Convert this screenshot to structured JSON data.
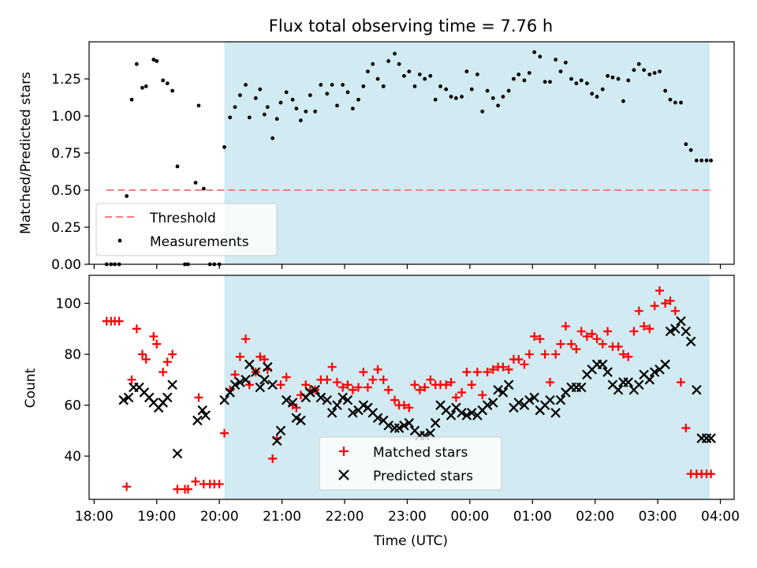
{
  "figure": {
    "title": "Flux total observing time = 7.76 h"
  },
  "colors": {
    "shade": "#add8e6",
    "threshold": "#f08080",
    "matched": "#ff0000",
    "predicted": "#000000",
    "measurement": "#000000"
  },
  "chart_data": [
    {
      "type": "scatter",
      "panel": "top",
      "ylabel": "Matched/Predicted stars",
      "xlim": [
        17.92,
        28.22
      ],
      "ylim": [
        0.0,
        1.5
      ],
      "yticks": [
        0.0,
        0.25,
        0.5,
        0.75,
        1.0,
        1.25
      ],
      "ytick_labels": [
        "0.00",
        "0.25",
        "0.50",
        "0.75",
        "1.00",
        "1.25"
      ],
      "grid": false,
      "legend_position": "lower left",
      "shaded_interval": [
        20.08,
        27.83
      ],
      "threshold": {
        "name": "Threshold",
        "y": 0.5,
        "x_range": [
          18.2,
          27.83
        ]
      },
      "series": [
        {
          "name": "Measurements",
          "marker": "dot",
          "x": [
            18.2,
            18.27,
            18.33,
            18.4,
            18.52,
            18.6,
            18.68,
            18.77,
            18.83,
            18.95,
            19.0,
            19.1,
            19.17,
            19.25,
            19.33,
            19.45,
            19.5,
            19.62,
            19.67,
            19.75,
            19.85,
            19.92,
            20.0,
            20.08,
            20.17,
            20.25,
            20.33,
            20.42,
            20.48,
            20.58,
            20.65,
            20.72,
            20.77,
            20.85,
            20.92,
            20.98,
            21.07,
            21.17,
            21.23,
            21.3,
            21.38,
            21.45,
            21.53,
            21.62,
            21.72,
            21.8,
            21.88,
            21.97,
            22.05,
            22.13,
            22.22,
            22.3,
            22.37,
            22.45,
            22.53,
            22.62,
            22.7,
            22.8,
            22.87,
            22.95,
            23.03,
            23.12,
            23.2,
            23.28,
            23.37,
            23.45,
            23.53,
            23.62,
            23.7,
            23.78,
            23.87,
            23.95,
            24.03,
            24.12,
            24.2,
            24.28,
            24.37,
            24.45,
            24.53,
            24.62,
            24.7,
            24.78,
            24.87,
            24.95,
            25.03,
            25.12,
            25.2,
            25.28,
            25.37,
            25.45,
            25.53,
            25.62,
            25.7,
            25.78,
            25.87,
            25.95,
            26.03,
            26.12,
            26.2,
            26.28,
            26.37,
            26.45,
            26.53,
            26.62,
            26.7,
            26.78,
            26.87,
            26.95,
            27.03,
            27.12,
            27.2,
            27.28,
            27.37,
            27.45,
            27.53,
            27.62,
            27.7,
            27.78,
            27.85
          ],
          "y": [
            0.0,
            0.0,
            0.0,
            0.0,
            0.46,
            1.11,
            1.35,
            1.19,
            1.2,
            1.38,
            1.37,
            1.24,
            1.22,
            1.17,
            0.66,
            0.0,
            0.0,
            0.55,
            1.07,
            0.51,
            0.0,
            0.0,
            0.0,
            0.79,
            0.99,
            1.06,
            1.14,
            1.21,
            0.99,
            1.12,
            1.18,
            1.01,
            1.06,
            0.85,
            0.98,
            1.09,
            1.16,
            1.11,
            1.05,
            0.97,
            1.03,
            1.14,
            1.03,
            1.21,
            1.15,
            1.21,
            1.07,
            1.21,
            1.16,
            1.05,
            1.11,
            1.2,
            1.3,
            1.35,
            1.25,
            1.2,
            1.37,
            1.42,
            1.35,
            1.27,
            1.3,
            1.2,
            1.28,
            1.25,
            1.27,
            1.11,
            1.2,
            1.18,
            1.13,
            1.12,
            1.13,
            1.3,
            1.18,
            1.28,
            1.03,
            1.17,
            1.12,
            1.07,
            1.13,
            1.17,
            1.25,
            1.28,
            1.24,
            1.29,
            1.43,
            1.4,
            1.23,
            1.23,
            1.38,
            1.3,
            1.36,
            1.25,
            1.22,
            1.24,
            1.22,
            1.15,
            1.13,
            1.18,
            1.27,
            1.26,
            1.25,
            1.1,
            1.24,
            1.31,
            1.35,
            1.31,
            1.28,
            1.29,
            1.3,
            1.17,
            1.11,
            1.09,
            1.09,
            0.81,
            0.77,
            0.7,
            0.7,
            0.7,
            0.7
          ]
        }
      ]
    },
    {
      "type": "scatter",
      "panel": "bottom",
      "xlabel": "Time (UTC)",
      "ylabel": "Count",
      "xlim": [
        17.92,
        28.22
      ],
      "ylim": [
        23,
        111
      ],
      "xticks": [
        18,
        19,
        20,
        21,
        22,
        23,
        24,
        25,
        26,
        27,
        28
      ],
      "xtick_labels": [
        "18:00",
        "19:00",
        "20:00",
        "21:00",
        "22:00",
        "23:00",
        "00:00",
        "01:00",
        "02:00",
        "03:00",
        "04:00"
      ],
      "yticks": [
        40,
        60,
        80,
        100
      ],
      "ytick_labels": [
        "40",
        "60",
        "80",
        "100"
      ],
      "grid": false,
      "legend_position": "lower center",
      "shaded_interval": [
        20.08,
        27.83
      ],
      "series": [
        {
          "name": "Matched stars",
          "marker": "plus",
          "x": [
            18.2,
            18.27,
            18.33,
            18.4,
            18.52,
            18.6,
            18.68,
            18.77,
            18.83,
            18.95,
            19.0,
            19.1,
            19.17,
            19.25,
            19.33,
            19.45,
            19.5,
            19.62,
            19.67,
            19.75,
            19.85,
            19.92,
            20.0,
            20.08,
            20.17,
            20.25,
            20.33,
            20.42,
            20.48,
            20.58,
            20.65,
            20.72,
            20.77,
            20.85,
            20.92,
            20.98,
            21.07,
            21.17,
            21.23,
            21.3,
            21.38,
            21.45,
            21.53,
            21.62,
            21.72,
            21.8,
            21.88,
            21.97,
            22.05,
            22.13,
            22.22,
            22.3,
            22.37,
            22.45,
            22.53,
            22.62,
            22.7,
            22.8,
            22.87,
            22.95,
            23.03,
            23.12,
            23.2,
            23.28,
            23.37,
            23.45,
            23.53,
            23.62,
            23.7,
            23.78,
            23.87,
            23.95,
            24.03,
            24.12,
            24.2,
            24.28,
            24.37,
            24.45,
            24.53,
            24.62,
            24.7,
            24.78,
            24.87,
            24.95,
            25.03,
            25.12,
            25.2,
            25.28,
            25.37,
            25.45,
            25.53,
            25.62,
            25.7,
            25.78,
            25.87,
            25.95,
            26.03,
            26.12,
            26.2,
            26.28,
            26.37,
            26.45,
            26.53,
            26.62,
            26.7,
            26.78,
            26.87,
            26.95,
            27.03,
            27.12,
            27.2,
            27.28,
            27.37,
            27.45,
            27.53,
            27.62,
            27.7,
            27.78,
            27.85
          ],
          "y": [
            93,
            93,
            93,
            93,
            28,
            70,
            90,
            80,
            78,
            87,
            84,
            73,
            77,
            80,
            27,
            27,
            27,
            30,
            63,
            29,
            29,
            29,
            29,
            49,
            66,
            72,
            79,
            86,
            68,
            73,
            79,
            78,
            74,
            39,
            47,
            68,
            71,
            60,
            59,
            64,
            68,
            66,
            66,
            70,
            70,
            75,
            69,
            67,
            68,
            66,
            67,
            73,
            67,
            70,
            74,
            70,
            66,
            62,
            60,
            60,
            59,
            68,
            66,
            67,
            70,
            68,
            68,
            68,
            69,
            63,
            65,
            73,
            68,
            73,
            64,
            73,
            74,
            75,
            75,
            74,
            78,
            78,
            76,
            80,
            87,
            86,
            80,
            69,
            80,
            84,
            91,
            84,
            82,
            89,
            87,
            88,
            86,
            84,
            89,
            83,
            83,
            80,
            79,
            89,
            97,
            91,
            90,
            99,
            105,
            100,
            101,
            97,
            69,
            51,
            33,
            33,
            33,
            33,
            33
          ]
        },
        {
          "name": "Predicted stars",
          "marker": "x",
          "x": [
            18.47,
            18.55,
            18.63,
            18.72,
            18.8,
            18.88,
            18.95,
            19.03,
            19.1,
            19.17,
            19.25,
            19.33,
            19.65,
            19.73,
            19.78,
            20.08,
            20.17,
            20.25,
            20.33,
            20.42,
            20.48,
            20.58,
            20.65,
            20.72,
            20.77,
            20.85,
            20.92,
            20.98,
            21.07,
            21.17,
            21.23,
            21.3,
            21.38,
            21.45,
            21.53,
            21.62,
            21.72,
            21.8,
            21.88,
            21.97,
            22.05,
            22.13,
            22.22,
            22.3,
            22.37,
            22.45,
            22.53,
            22.62,
            22.7,
            22.8,
            22.87,
            22.95,
            23.03,
            23.12,
            23.2,
            23.28,
            23.37,
            23.45,
            23.53,
            23.62,
            23.7,
            23.78,
            23.87,
            23.95,
            24.03,
            24.12,
            24.2,
            24.28,
            24.37,
            24.45,
            24.53,
            24.62,
            24.7,
            24.78,
            24.87,
            24.95,
            25.03,
            25.12,
            25.2,
            25.28,
            25.37,
            25.45,
            25.53,
            25.62,
            25.7,
            25.78,
            25.87,
            25.95,
            26.03,
            26.12,
            26.2,
            26.28,
            26.37,
            26.45,
            26.53,
            26.62,
            26.7,
            26.78,
            26.87,
            26.95,
            27.03,
            27.12,
            27.2,
            27.28,
            27.37,
            27.45,
            27.53,
            27.62,
            27.7,
            27.78,
            27.85
          ],
          "y": [
            62,
            63,
            67,
            67,
            65,
            63,
            61,
            59,
            61,
            63,
            68,
            41,
            54,
            58,
            56,
            62,
            65,
            68,
            69,
            70,
            76,
            73,
            67,
            70,
            75,
            68,
            46,
            50,
            62,
            61,
            55,
            54,
            63,
            65,
            66,
            63,
            62,
            57,
            60,
            63,
            62,
            57,
            58,
            60,
            59,
            57,
            55,
            54,
            52,
            51,
            51,
            52,
            53,
            50,
            48,
            48,
            49,
            53,
            60,
            58,
            56,
            59,
            57,
            56,
            57,
            56,
            58,
            60,
            61,
            66,
            65,
            68,
            59,
            61,
            60,
            62,
            63,
            58,
            60,
            62,
            57,
            62,
            65,
            67,
            67,
            67,
            72,
            74,
            76,
            76,
            73,
            68,
            66,
            69,
            69,
            66,
            68,
            72,
            70,
            73,
            74,
            76,
            89,
            90,
            93,
            89,
            85,
            66,
            47,
            47,
            47
          ]
        }
      ]
    }
  ]
}
